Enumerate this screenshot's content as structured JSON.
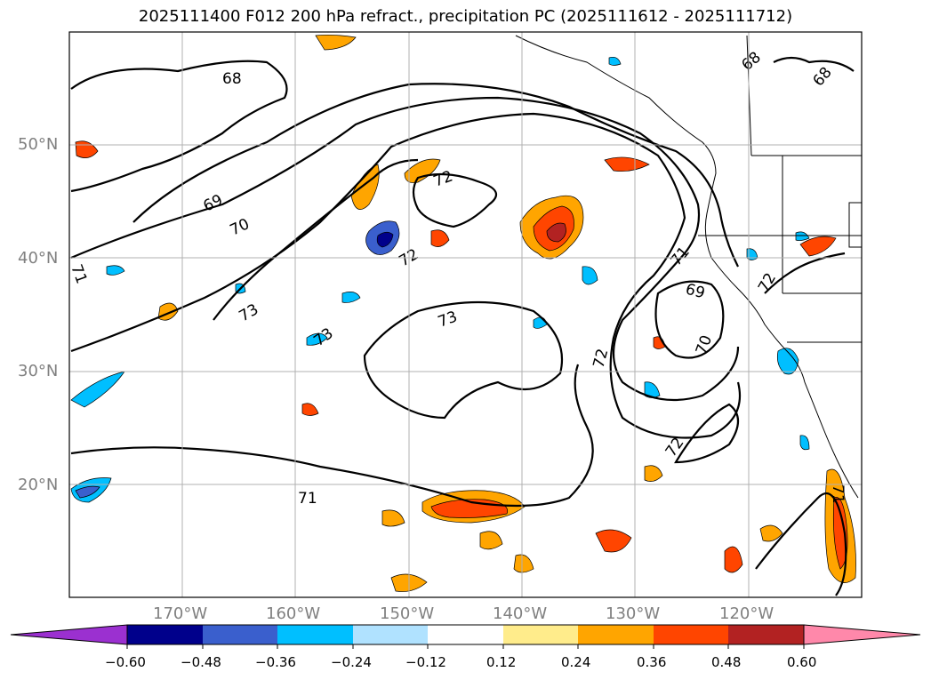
{
  "title": "2025111400 F012 200 hPa refract., precipitation PC (2025111612 - 2025111712)",
  "latitude_labels": [
    "50°N",
    "40°N",
    "30°N",
    "20°N"
  ],
  "longitude_labels": [
    "170°W",
    "160°W",
    "150°W",
    "140°W",
    "130°W",
    "120°W"
  ],
  "contour_labels": [
    "68",
    "69",
    "70",
    "71",
    "72",
    "72",
    "72",
    "73",
    "73",
    "73",
    "71",
    "69",
    "70",
    "72",
    "71",
    "68",
    "68",
    "71",
    "72"
  ],
  "colorbar": {
    "ticks": [
      "−0.60",
      "−0.48",
      "−0.36",
      "−0.24",
      "−0.12",
      "0.12",
      "0.24",
      "0.36",
      "0.48",
      "0.60"
    ],
    "colors": [
      "#9b30d0",
      "#00008b",
      "#3a5fcd",
      "#00bfff",
      "#b0e2ff",
      "#ffffff",
      "#ffec8b",
      "#ffa500",
      "#ff4500",
      "#b22222",
      "#ff88aa"
    ]
  },
  "colors": {
    "grid": "#b0b0b0",
    "contour": "#000000",
    "coast": "#000000"
  }
}
